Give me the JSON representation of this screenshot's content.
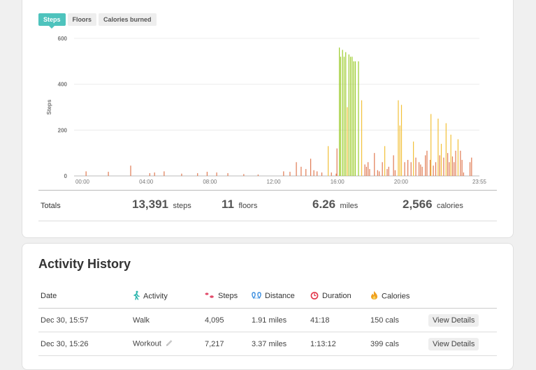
{
  "tabs": [
    {
      "label": "Steps",
      "active": true
    },
    {
      "label": "Floors",
      "active": false
    },
    {
      "label": "Calories burned",
      "active": false
    }
  ],
  "chart_data": {
    "type": "bar",
    "ylabel": "Steps",
    "xlabel": "",
    "ylim": [
      0,
      600
    ],
    "yticks": [
      0,
      200,
      400,
      600
    ],
    "xticks": [
      "00:00",
      "04:00",
      "08:00",
      "12:00",
      "16:00",
      "20:00",
      "23:55"
    ],
    "grid": true,
    "colors": {
      "low": "#e07a52",
      "medium": "#f2c038",
      "high": "#9ccc2c"
    },
    "bars": [
      [
        0.2,
        20
      ],
      [
        1.6,
        18
      ],
      [
        3.0,
        45
      ],
      [
        4.2,
        12
      ],
      [
        4.5,
        15
      ],
      [
        5.1,
        20
      ],
      [
        6.2,
        10
      ],
      [
        7.2,
        12
      ],
      [
        7.8,
        18
      ],
      [
        8.4,
        15
      ],
      [
        9.1,
        12
      ],
      [
        10.1,
        8
      ],
      [
        11.0,
        6
      ],
      [
        12.6,
        20
      ],
      [
        13.0,
        18
      ],
      [
        13.4,
        60
      ],
      [
        13.7,
        40
      ],
      [
        14.0,
        30
      ],
      [
        14.3,
        75
      ],
      [
        14.5,
        25
      ],
      [
        14.7,
        20
      ],
      [
        15.0,
        15
      ],
      [
        15.4,
        130
      ],
      [
        15.6,
        15
      ],
      [
        15.9,
        10
      ],
      [
        15.95,
        120
      ],
      [
        16.1,
        560
      ],
      [
        16.18,
        520
      ],
      [
        16.3,
        550
      ],
      [
        16.4,
        520
      ],
      [
        16.5,
        540
      ],
      [
        16.6,
        300
      ],
      [
        16.7,
        530
      ],
      [
        16.8,
        520
      ],
      [
        16.9,
        520
      ],
      [
        17.0,
        500
      ],
      [
        17.1,
        500
      ],
      [
        17.3,
        500
      ],
      [
        17.5,
        330
      ],
      [
        17.7,
        50
      ],
      [
        17.8,
        40
      ],
      [
        17.9,
        60
      ],
      [
        18.0,
        30
      ],
      [
        18.3,
        100
      ],
      [
        18.5,
        25
      ],
      [
        18.6,
        20
      ],
      [
        18.8,
        60
      ],
      [
        18.95,
        130
      ],
      [
        19.1,
        30
      ],
      [
        19.2,
        40
      ],
      [
        19.5,
        90
      ],
      [
        19.6,
        25
      ],
      [
        19.8,
        330
      ],
      [
        19.9,
        220
      ],
      [
        20.0,
        310
      ],
      [
        20.2,
        60
      ],
      [
        20.4,
        70
      ],
      [
        20.6,
        60
      ],
      [
        20.75,
        150
      ],
      [
        20.9,
        80
      ],
      [
        21.1,
        60
      ],
      [
        21.2,
        50
      ],
      [
        21.3,
        40
      ],
      [
        21.5,
        90
      ],
      [
        21.6,
        110
      ],
      [
        21.8,
        70
      ],
      [
        21.85,
        270
      ],
      [
        22.0,
        45
      ],
      [
        22.15,
        60
      ],
      [
        22.3,
        250
      ],
      [
        22.4,
        90
      ],
      [
        22.5,
        140
      ],
      [
        22.65,
        80
      ],
      [
        22.8,
        230
      ],
      [
        22.9,
        100
      ],
      [
        23.0,
        60
      ],
      [
        23.1,
        180
      ],
      [
        23.2,
        85
      ],
      [
        23.3,
        60
      ],
      [
        23.4,
        110
      ],
      [
        23.55,
        160
      ],
      [
        23.7,
        110
      ],
      [
        23.8,
        70
      ],
      [
        23.9,
        15
      ],
      [
        24.3,
        60
      ],
      [
        24.4,
        80
      ]
    ]
  },
  "totals": {
    "label": "Totals",
    "steps": {
      "value": "13,391",
      "unit": "steps"
    },
    "floors": {
      "value": "11",
      "unit": "floors"
    },
    "miles": {
      "value": "6.26",
      "unit": "miles"
    },
    "calories": {
      "value": "2,566",
      "unit": "calories"
    }
  },
  "history": {
    "title": "Activity History",
    "columns": {
      "date": "Date",
      "activity": "Activity",
      "steps": "Steps",
      "distance": "Distance",
      "duration": "Duration",
      "calories": "Calories"
    },
    "icons": {
      "activity": "walking-person-icon",
      "steps": "footprints-icon",
      "distance": "map-pins-icon",
      "duration": "stopwatch-icon",
      "calories": "flame-icon"
    },
    "rows": [
      {
        "date": "Dec 30, 15:57",
        "activity": "Walk",
        "steps": "4,095",
        "distance": "1.91 miles",
        "duration": "41:18",
        "calories": "150 cals",
        "button": "View Details",
        "editable": false
      },
      {
        "date": "Dec 30, 15:26",
        "activity": "Workout",
        "steps": "7,217",
        "distance": "3.37 miles",
        "duration": "1:13:12",
        "calories": "399 cals",
        "button": "View Details",
        "editable": true
      }
    ]
  }
}
